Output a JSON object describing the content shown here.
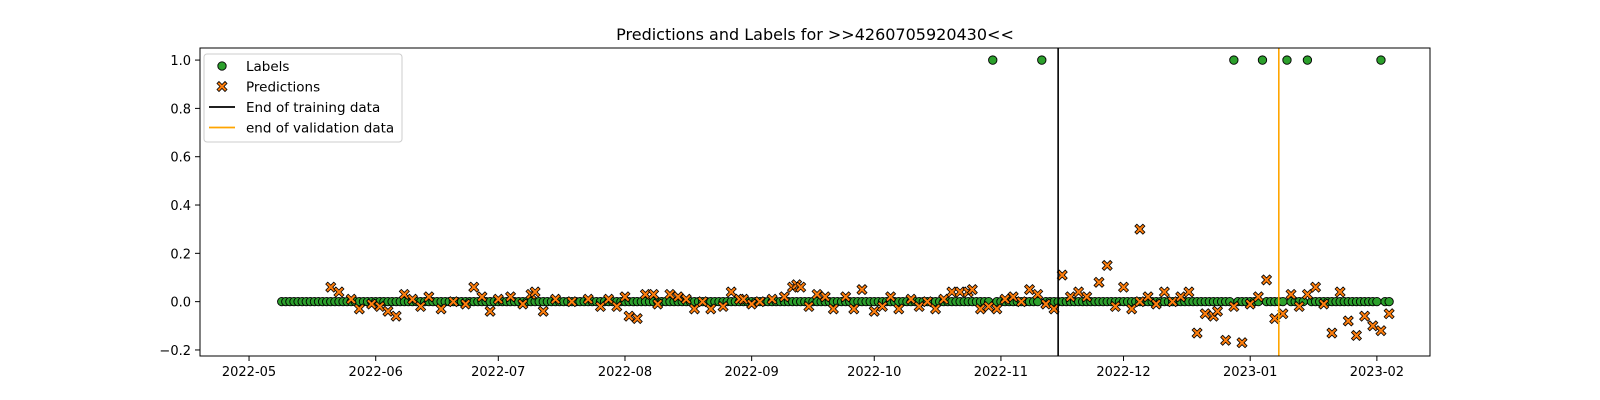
{
  "chart_data": {
    "type": "scatter",
    "title": "Predictions and Labels for >>4260705920430<<",
    "xlabel": "",
    "ylabel": "",
    "x_type": "date",
    "xlim": [
      "2022-04-19",
      "2023-02-14"
    ],
    "ylim": [
      -0.225,
      1.05
    ],
    "x_ticks": [
      "2022-05",
      "2022-06",
      "2022-07",
      "2022-08",
      "2022-09",
      "2022-10",
      "2022-11",
      "2022-12",
      "2023-01",
      "2023-02"
    ],
    "y_ticks": [
      "−0.2",
      "0.0",
      "0.2",
      "0.4",
      "0.6",
      "0.8",
      "1.0"
    ],
    "grid": false,
    "legend_position": "top-left",
    "legend": [
      {
        "label": "Labels",
        "marker": "circle"
      },
      {
        "label": "Predictions",
        "marker": "x"
      },
      {
        "label": "End of training data",
        "marker": "line"
      },
      {
        "label": "end of validation data",
        "marker": "line"
      }
    ],
    "date_range": {
      "start": "2022-05-09",
      "end": "2023-02-04"
    },
    "series": [
      {
        "name": "Labels",
        "kind": "labels",
        "color": "#2ca02c",
        "default_value": 0,
        "ones": [
          "2022-10-30",
          "2022-11-11",
          "2022-12-28",
          "2023-01-04",
          "2023-01-10",
          "2023-01-15",
          "2023-02-02"
        ]
      },
      {
        "name": "Predictions",
        "kind": "predictions",
        "color": "#ff7f0e",
        "points": [
          [
            "2022-05-21",
            0.06
          ],
          [
            "2022-05-23",
            0.04
          ],
          [
            "2022-05-26",
            0.01
          ],
          [
            "2022-05-28",
            -0.03
          ],
          [
            "2022-05-31",
            -0.01
          ],
          [
            "2022-06-02",
            -0.02
          ],
          [
            "2022-06-04",
            -0.04
          ],
          [
            "2022-06-06",
            -0.06
          ],
          [
            "2022-06-08",
            0.03
          ],
          [
            "2022-06-10",
            0.01
          ],
          [
            "2022-06-12",
            -0.02
          ],
          [
            "2022-06-14",
            0.02
          ],
          [
            "2022-06-17",
            -0.03
          ],
          [
            "2022-06-20",
            0.0
          ],
          [
            "2022-06-23",
            -0.01
          ],
          [
            "2022-06-25",
            0.06
          ],
          [
            "2022-06-27",
            0.02
          ],
          [
            "2022-06-29",
            -0.04
          ],
          [
            "2022-07-01",
            0.01
          ],
          [
            "2022-07-04",
            0.02
          ],
          [
            "2022-07-07",
            -0.01
          ],
          [
            "2022-07-09",
            0.03
          ],
          [
            "2022-07-10",
            0.04
          ],
          [
            "2022-07-12",
            -0.04
          ],
          [
            "2022-07-15",
            0.01
          ],
          [
            "2022-07-19",
            0.0
          ],
          [
            "2022-07-23",
            0.01
          ],
          [
            "2022-07-26",
            -0.02
          ],
          [
            "2022-07-28",
            0.01
          ],
          [
            "2022-07-30",
            -0.02
          ],
          [
            "2022-08-01",
            0.02
          ],
          [
            "2022-08-02",
            -0.06
          ],
          [
            "2022-08-04",
            -0.07
          ],
          [
            "2022-08-06",
            0.03
          ],
          [
            "2022-08-08",
            0.03
          ],
          [
            "2022-08-09",
            -0.01
          ],
          [
            "2022-08-12",
            0.03
          ],
          [
            "2022-08-14",
            0.02
          ],
          [
            "2022-08-16",
            0.01
          ],
          [
            "2022-08-18",
            -0.03
          ],
          [
            "2022-08-20",
            0.0
          ],
          [
            "2022-08-22",
            -0.03
          ],
          [
            "2022-08-25",
            -0.02
          ],
          [
            "2022-08-27",
            0.04
          ],
          [
            "2022-08-29",
            0.01
          ],
          [
            "2022-08-30",
            0.01
          ],
          [
            "2022-09-01",
            -0.01
          ],
          [
            "2022-09-03",
            0.0
          ],
          [
            "2022-09-06",
            0.01
          ],
          [
            "2022-09-09",
            0.02
          ],
          [
            "2022-09-11",
            0.06
          ],
          [
            "2022-09-12",
            0.07
          ],
          [
            "2022-09-13",
            0.06
          ],
          [
            "2022-09-15",
            -0.02
          ],
          [
            "2022-09-17",
            0.03
          ],
          [
            "2022-09-19",
            0.02
          ],
          [
            "2022-09-21",
            -0.03
          ],
          [
            "2022-09-24",
            0.02
          ],
          [
            "2022-09-26",
            -0.03
          ],
          [
            "2022-09-28",
            0.05
          ],
          [
            "2022-10-01",
            -0.04
          ],
          [
            "2022-10-03",
            -0.02
          ],
          [
            "2022-10-05",
            0.02
          ],
          [
            "2022-10-07",
            -0.03
          ],
          [
            "2022-10-10",
            0.01
          ],
          [
            "2022-10-12",
            -0.02
          ],
          [
            "2022-10-14",
            0.0
          ],
          [
            "2022-10-16",
            -0.03
          ],
          [
            "2022-10-18",
            0.01
          ],
          [
            "2022-10-20",
            0.04
          ],
          [
            "2022-10-22",
            0.04
          ],
          [
            "2022-10-24",
            0.04
          ],
          [
            "2022-10-25",
            0.05
          ],
          [
            "2022-10-27",
            -0.03
          ],
          [
            "2022-10-29",
            -0.02
          ],
          [
            "2022-10-31",
            -0.03
          ],
          [
            "2022-11-02",
            0.01
          ],
          [
            "2022-11-04",
            0.02
          ],
          [
            "2022-11-06",
            0.0
          ],
          [
            "2022-11-08",
            0.05
          ],
          [
            "2022-11-10",
            0.03
          ],
          [
            "2022-11-12",
            -0.01
          ],
          [
            "2022-11-14",
            -0.03
          ],
          [
            "2022-11-16",
            0.11
          ],
          [
            "2022-11-18",
            0.02
          ],
          [
            "2022-11-20",
            0.04
          ],
          [
            "2022-11-22",
            0.02
          ],
          [
            "2022-11-25",
            0.08
          ],
          [
            "2022-11-27",
            0.15
          ],
          [
            "2022-11-29",
            -0.02
          ],
          [
            "2022-12-01",
            0.06
          ],
          [
            "2022-12-03",
            -0.03
          ],
          [
            "2022-12-05",
            0.0
          ],
          [
            "2022-12-05",
            0.3
          ],
          [
            "2022-12-07",
            0.02
          ],
          [
            "2022-12-09",
            -0.01
          ],
          [
            "2022-12-11",
            0.04
          ],
          [
            "2022-12-13",
            0.0
          ],
          [
            "2022-12-15",
            0.02
          ],
          [
            "2022-12-17",
            0.04
          ],
          [
            "2022-12-19",
            -0.13
          ],
          [
            "2022-12-21",
            -0.05
          ],
          [
            "2022-12-23",
            -0.06
          ],
          [
            "2022-12-24",
            -0.04
          ],
          [
            "2022-12-26",
            -0.16
          ],
          [
            "2022-12-28",
            -0.02
          ],
          [
            "2022-12-30",
            -0.17
          ],
          [
            "2023-01-01",
            -0.01
          ],
          [
            "2023-01-03",
            0.02
          ],
          [
            "2023-01-05",
            0.09
          ],
          [
            "2023-01-07",
            -0.07
          ],
          [
            "2023-01-09",
            -0.05
          ],
          [
            "2023-01-11",
            0.03
          ],
          [
            "2023-01-13",
            -0.02
          ],
          [
            "2023-01-15",
            0.03
          ],
          [
            "2023-01-17",
            0.06
          ],
          [
            "2023-01-19",
            -0.01
          ],
          [
            "2023-01-21",
            -0.13
          ],
          [
            "2023-01-23",
            0.04
          ],
          [
            "2023-01-25",
            -0.08
          ],
          [
            "2023-01-27",
            -0.14
          ],
          [
            "2023-01-29",
            -0.06
          ],
          [
            "2023-01-31",
            -0.1
          ],
          [
            "2023-02-02",
            -0.12
          ],
          [
            "2023-02-04",
            -0.05
          ]
        ]
      },
      {
        "name": "End of training data",
        "kind": "vline",
        "x": "2022-11-15",
        "color": "#000000"
      },
      {
        "name": "end of validation data",
        "kind": "vline",
        "x": "2023-01-08",
        "color": "#ffa500"
      }
    ]
  }
}
